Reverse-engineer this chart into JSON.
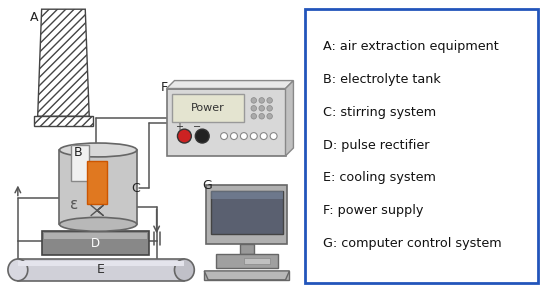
{
  "legend_items": [
    "A: air extraction equipment",
    "B: electrolyte tank",
    "C: stirring system",
    "D: pulse rectifier",
    "E: cooling system",
    "F: power supply",
    "G: computer control system"
  ],
  "legend_box_color": "#2255bb",
  "legend_text_color": "#111111",
  "legend_fontsize": 9.2,
  "bg_color": "#ffffff",
  "label_A": "A",
  "label_B": "B",
  "label_C": "C",
  "label_D": "D",
  "label_E": "E",
  "label_F": "F",
  "label_G": "G"
}
